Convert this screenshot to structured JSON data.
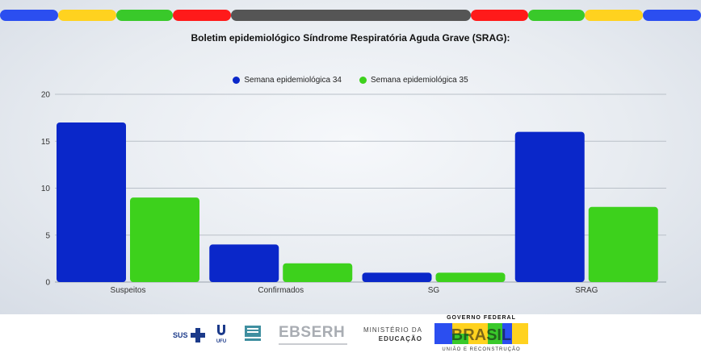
{
  "header": {
    "title": "Boletim epidemiológico Síndrome Respiratória Aguda Grave (SRAG):"
  },
  "band_colors": [
    "#2b4ef0",
    "#ffd21f",
    "#39c92a",
    "#ff1a1a",
    "#555555",
    "#ff1a1a",
    "#39c92a",
    "#ffd21f",
    "#2b4ef0"
  ],
  "chart_data": {
    "type": "bar",
    "title": "Boletim epidemiológico Síndrome Respiratória Aguda Grave (SRAG):",
    "categories": [
      "Suspeitos",
      "Confirmados",
      "SG",
      "SRAG"
    ],
    "series": [
      {
        "name": "Semana epidemiológica 34",
        "color": "#0a27c9",
        "values": [
          17,
          4,
          1,
          16
        ]
      },
      {
        "name": "Semana epidemiológica 35",
        "color": "#3dd11c",
        "values": [
          9,
          2,
          1,
          8
        ]
      }
    ],
    "y_ticks": [
      "0",
      "5",
      "10",
      "15",
      "20"
    ],
    "ylim": [
      0,
      20
    ],
    "grid": true,
    "legend_position": "top-center"
  },
  "footer": {
    "sus": "SUS",
    "ufu": "UFU",
    "ebserh": "EBSERH",
    "ministerio_line1": "MINISTÉRIO DA",
    "ministerio_line2": "EDUCAÇÃO",
    "governo": "GOVERNO FEDERAL",
    "brasil": "BRASIL",
    "slogan": "UNIÃO E RECONSTRUÇÃO"
  }
}
